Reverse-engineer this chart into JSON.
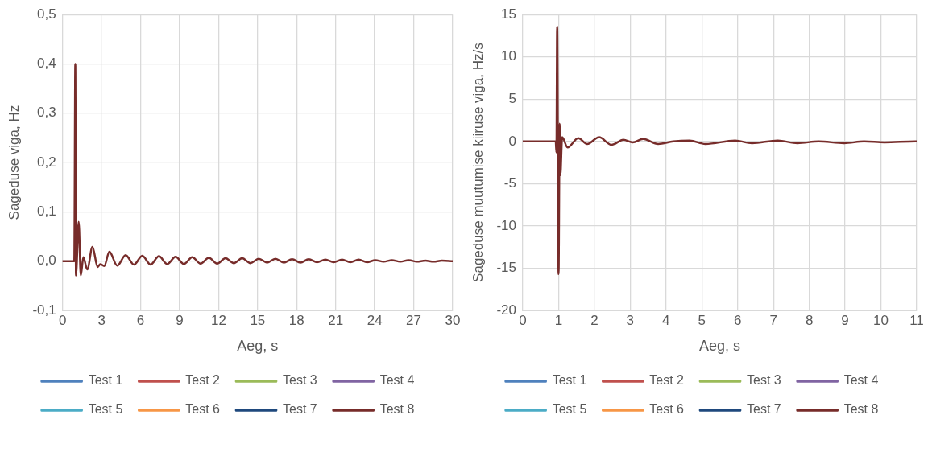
{
  "chart_data": [
    {
      "type": "line",
      "xlabel": "Aeg, s",
      "ylabel": "Sageduse viga, Hz",
      "xlim": [
        0,
        30
      ],
      "xticks": [
        0,
        3,
        6,
        9,
        12,
        15,
        18,
        21,
        24,
        27,
        30
      ],
      "ylim": [
        -0.1,
        0.5
      ],
      "yticks": [
        {
          "value": -0.1,
          "label": "-0,1"
        },
        {
          "value": 0,
          "label": "0,0"
        },
        {
          "value": 0.1,
          "label": "0,1"
        },
        {
          "value": 0.2,
          "label": "0,2"
        },
        {
          "value": 0.3,
          "label": "0,3"
        },
        {
          "value": 0.4,
          "label": "0,4"
        },
        {
          "value": 0.5,
          "label": "0,5"
        }
      ],
      "grid": true,
      "legend": "bottom",
      "marker": "none",
      "line_style": "solid",
      "x": [
        0,
        0.9,
        0.98,
        1.03,
        1.24,
        1.4,
        1.6,
        1.9,
        2.3,
        2.7,
        2.9,
        3.2,
        3.6,
        4.2,
        4.85,
        5.49,
        6.13,
        6.77,
        7.41,
        8.05,
        8.69,
        9.33,
        9.97,
        10.61,
        11.25,
        11.89,
        12.53,
        13.17,
        13.81,
        14.45,
        15.09,
        15.73,
        16.37,
        17.01,
        17.65,
        18.29,
        18.93,
        19.57,
        20.21,
        20.85,
        21.49,
        22.13,
        22.77,
        23.41,
        24.05,
        24.69,
        25.33,
        25.97,
        26.61,
        27.25,
        27.89,
        28.53,
        29.17,
        30
      ],
      "series": [
        {
          "name": "Test 1",
          "color": "#4f81bd",
          "values": [
            null,
            null,
            null,
            null,
            null,
            null,
            null,
            null,
            null,
            null,
            null,
            null,
            null,
            null,
            null,
            null,
            null,
            null,
            null,
            null,
            null,
            null,
            null,
            null,
            null,
            null,
            null,
            null,
            null,
            null,
            null,
            null,
            null,
            null,
            null,
            null,
            null,
            null,
            null,
            null,
            null,
            null,
            null,
            null,
            null,
            null,
            null,
            null,
            null,
            null,
            null,
            null,
            null,
            null
          ]
        },
        {
          "name": "Test 2",
          "color": "#c0504d",
          "values": [
            null,
            null,
            null,
            null,
            null,
            null,
            null,
            null,
            null,
            null,
            null,
            null,
            null,
            null,
            null,
            null,
            null,
            null,
            null,
            null,
            null,
            null,
            null,
            null,
            null,
            null,
            null,
            null,
            null,
            null,
            null,
            null,
            null,
            null,
            null,
            null,
            null,
            null,
            null,
            null,
            null,
            null,
            null,
            null,
            null,
            null,
            null,
            null,
            null,
            null,
            null,
            null,
            null,
            null
          ]
        },
        {
          "name": "Test 3",
          "color": "#9bbb59",
          "values": [
            null,
            null,
            null,
            null,
            null,
            null,
            null,
            null,
            null,
            null,
            null,
            null,
            null,
            null,
            null,
            null,
            null,
            null,
            null,
            null,
            null,
            null,
            null,
            null,
            null,
            null,
            null,
            null,
            null,
            null,
            null,
            null,
            null,
            null,
            null,
            null,
            null,
            null,
            null,
            null,
            null,
            null,
            null,
            null,
            null,
            null,
            null,
            null,
            null,
            null,
            null,
            null,
            null,
            null
          ]
        },
        {
          "name": "Test 4",
          "color": "#8064a2",
          "values": [
            null,
            null,
            null,
            null,
            null,
            null,
            null,
            null,
            null,
            null,
            null,
            null,
            null,
            null,
            null,
            null,
            null,
            null,
            null,
            null,
            null,
            null,
            null,
            null,
            null,
            null,
            null,
            null,
            null,
            null,
            null,
            null,
            null,
            null,
            null,
            null,
            null,
            null,
            null,
            null,
            null,
            null,
            null,
            null,
            null,
            null,
            null,
            null,
            null,
            null,
            null,
            null,
            null,
            null
          ]
        },
        {
          "name": "Test 5",
          "color": "#4bacc6",
          "values": [
            null,
            null,
            null,
            null,
            null,
            null,
            null,
            null,
            null,
            null,
            null,
            null,
            null,
            null,
            null,
            null,
            null,
            null,
            null,
            null,
            null,
            null,
            null,
            null,
            null,
            null,
            null,
            null,
            null,
            null,
            null,
            null,
            null,
            null,
            null,
            null,
            null,
            null,
            null,
            null,
            null,
            null,
            null,
            null,
            null,
            null,
            null,
            null,
            null,
            null,
            null,
            null,
            null,
            null
          ]
        },
        {
          "name": "Test 6",
          "color": "#f79646",
          "values": [
            null,
            null,
            null,
            null,
            null,
            null,
            null,
            null,
            null,
            null,
            null,
            null,
            null,
            null,
            null,
            null,
            null,
            null,
            null,
            null,
            null,
            null,
            null,
            null,
            null,
            null,
            null,
            null,
            null,
            null,
            null,
            null,
            null,
            null,
            null,
            null,
            null,
            null,
            null,
            null,
            null,
            null,
            null,
            null,
            null,
            null,
            null,
            null,
            null,
            null,
            null,
            null,
            null,
            null
          ]
        },
        {
          "name": "Test 7",
          "color": "#1f497d",
          "values": [
            null,
            null,
            null,
            null,
            null,
            null,
            null,
            null,
            null,
            null,
            null,
            null,
            null,
            null,
            null,
            null,
            null,
            null,
            null,
            null,
            null,
            null,
            null,
            null,
            null,
            null,
            null,
            null,
            null,
            null,
            null,
            null,
            null,
            null,
            null,
            null,
            null,
            null,
            null,
            null,
            null,
            null,
            null,
            null,
            null,
            null,
            null,
            null,
            null,
            null,
            null,
            null,
            null,
            null
          ]
        },
        {
          "name": "Test 8",
          "color": "#772c2a",
          "values": [
            0,
            0,
            0.4,
            -0.029,
            0.08,
            -0.029,
            0.008,
            -0.017,
            0.029,
            -0.012,
            -0.006,
            -0.01,
            0.019,
            -0.009,
            0.012,
            -0.007,
            0.011,
            -0.007,
            0.01,
            -0.006,
            0.009,
            -0.006,
            0.008,
            -0.005,
            0.007,
            -0.005,
            0.006,
            -0.004,
            0.006,
            -0.004,
            0.005,
            -0.003,
            0.005,
            -0.003,
            0.004,
            -0.003,
            0.004,
            -0.002,
            0.003,
            -0.002,
            0.003,
            -0.002,
            0.003,
            -0.002,
            0.002,
            -0.001,
            0.002,
            -0.001,
            0.002,
            -0.001,
            0.001,
            -0.001,
            0.001,
            0
          ]
        }
      ]
    },
    {
      "type": "line",
      "xlabel": "Aeg, s",
      "ylabel": "Sageduse muutumise kiiruse viga, Hz/s",
      "xlim": [
        0,
        11
      ],
      "xticks": [
        0,
        1,
        2,
        3,
        4,
        5,
        6,
        7,
        8,
        9,
        10,
        11
      ],
      "ylim": [
        -20,
        15
      ],
      "yticks": [
        -20,
        -15,
        -10,
        -5,
        0,
        5,
        10,
        15
      ],
      "grid": true,
      "legend": "bottom",
      "marker": "none",
      "line_style": "solid",
      "x": [
        0,
        0.92,
        0.94,
        0.96,
        1.0,
        1.03,
        1.05,
        1.1,
        1.25,
        1.55,
        1.8,
        2.13,
        2.48,
        2.81,
        3.07,
        3.36,
        3.78,
        4.2,
        4.66,
        5.1,
        5.93,
        6.4,
        7.12,
        7.67,
        8.26,
        8.97,
        9.53,
        10.1,
        10.97,
        11
      ],
      "series": [
        {
          "name": "Test 1",
          "color": "#4f81bd",
          "values": [
            null,
            null,
            null,
            null,
            null,
            null,
            null,
            null,
            null,
            null,
            null,
            null,
            null,
            null,
            null,
            null,
            null,
            null,
            null,
            null,
            null,
            null,
            null,
            null,
            null,
            null,
            null,
            null,
            null,
            null
          ]
        },
        {
          "name": "Test 2",
          "color": "#c0504d",
          "values": [
            null,
            null,
            null,
            null,
            null,
            null,
            null,
            null,
            null,
            null,
            null,
            null,
            null,
            null,
            null,
            null,
            null,
            null,
            null,
            null,
            null,
            null,
            null,
            null,
            null,
            null,
            null,
            null,
            null,
            null
          ]
        },
        {
          "name": "Test 3",
          "color": "#9bbb59",
          "values": [
            null,
            null,
            null,
            null,
            null,
            null,
            null,
            null,
            null,
            null,
            null,
            null,
            null,
            null,
            null,
            null,
            null,
            null,
            null,
            null,
            null,
            null,
            null,
            null,
            null,
            null,
            null,
            null,
            null,
            null
          ]
        },
        {
          "name": "Test 4",
          "color": "#8064a2",
          "values": [
            null,
            null,
            null,
            null,
            null,
            null,
            null,
            null,
            null,
            null,
            null,
            null,
            null,
            null,
            null,
            null,
            null,
            null,
            null,
            null,
            null,
            null,
            null,
            null,
            null,
            null,
            null,
            null,
            null,
            null
          ]
        },
        {
          "name": "Test 5",
          "color": "#4bacc6",
          "values": [
            null,
            null,
            null,
            null,
            null,
            null,
            null,
            null,
            null,
            null,
            null,
            null,
            null,
            null,
            null,
            null,
            null,
            null,
            null,
            null,
            null,
            null,
            null,
            null,
            null,
            null,
            null,
            null,
            null,
            null
          ]
        },
        {
          "name": "Test 6",
          "color": "#f79646",
          "values": [
            null,
            null,
            null,
            null,
            null,
            null,
            null,
            null,
            null,
            null,
            null,
            null,
            null,
            null,
            null,
            null,
            null,
            null,
            null,
            null,
            null,
            null,
            null,
            null,
            null,
            null,
            null,
            null,
            null,
            null
          ]
        },
        {
          "name": "Test 7",
          "color": "#1f497d",
          "values": [
            null,
            null,
            null,
            null,
            null,
            null,
            null,
            null,
            null,
            null,
            null,
            null,
            null,
            null,
            null,
            null,
            null,
            null,
            null,
            null,
            null,
            null,
            null,
            null,
            null,
            null,
            null,
            null,
            null,
            null
          ]
        },
        {
          "name": "Test 8",
          "color": "#772c2a",
          "values": [
            0,
            0,
            -1.3,
            13.6,
            -15.7,
            2.1,
            -4,
            0.5,
            -0.7,
            0.4,
            -0.3,
            0.5,
            -0.4,
            0.2,
            -0.1,
            0.3,
            -0.3,
            0,
            0.1,
            -0.3,
            0.1,
            -0.2,
            0.1,
            -0.2,
            0,
            -0.2,
            0,
            -0.1,
            0,
            0
          ]
        }
      ]
    }
  ]
}
